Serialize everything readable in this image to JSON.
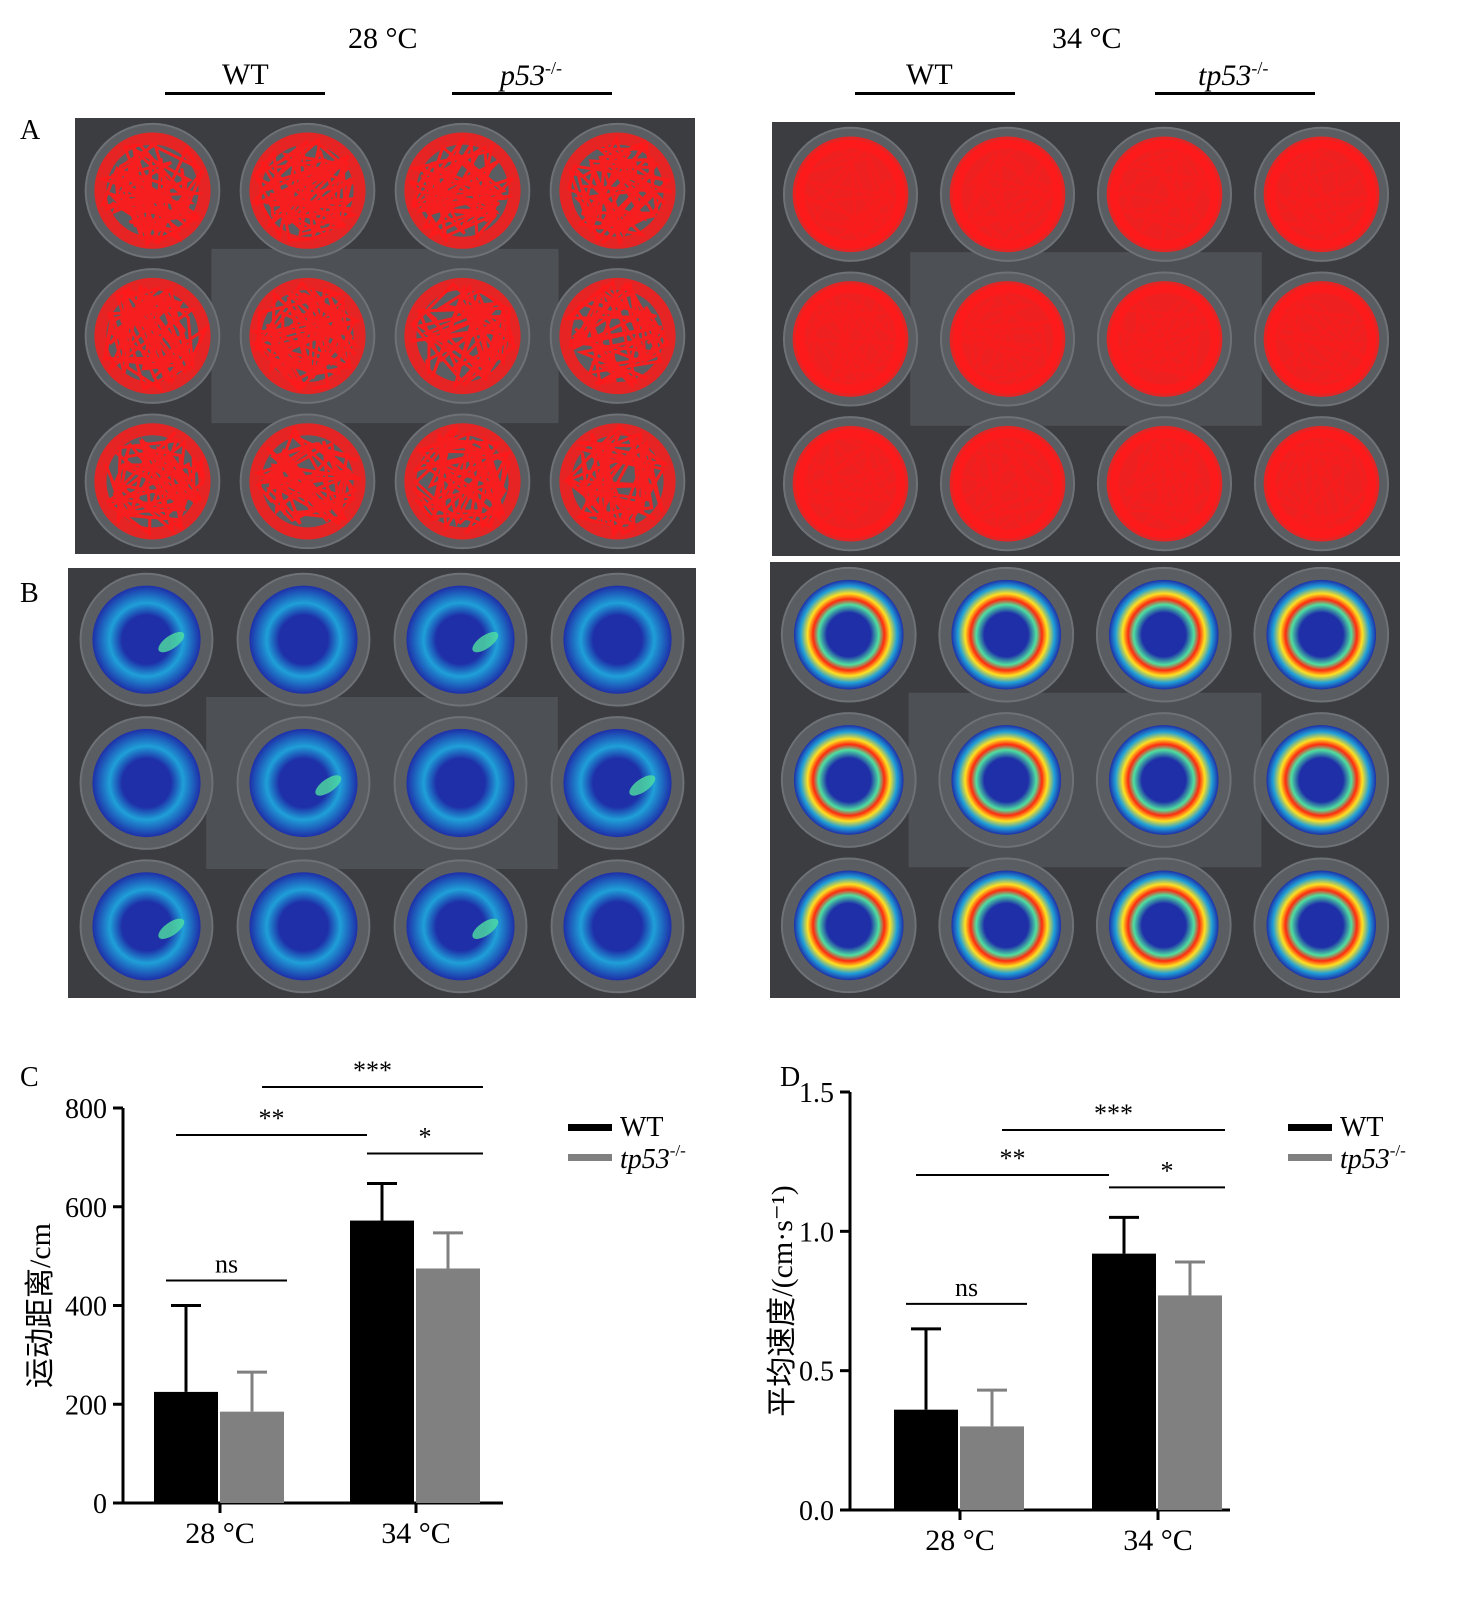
{
  "header": {
    "left_condition": "28 °C",
    "right_condition": "34 °C",
    "left_groups": [
      {
        "base": "WT",
        "sup": ""
      },
      {
        "base": "p53",
        "sup": "-/-"
      }
    ],
    "right_groups": [
      {
        "base": "WT",
        "sup": ""
      },
      {
        "base": "tp53",
        "sup": "-/-"
      }
    ]
  },
  "panels": {
    "a": "A",
    "b": "B",
    "c": "C",
    "d": "D"
  },
  "plate_colors": {
    "background": "#3b3d40",
    "well": "#5a5d61",
    "track": "#ff1a1a"
  },
  "heatmap_colors": [
    "#1e2fa8",
    "#1fa0d8",
    "#4fe0a0",
    "#ffe020",
    "#ff2a10"
  ],
  "legend": {
    "wt": "WT",
    "ko_base": "tp53",
    "ko_sup": "-/-"
  },
  "chart_data": [
    {
      "type": "bar",
      "panel": "C",
      "title": "",
      "ylabel": "运动距离/cm",
      "xlabel": "",
      "categories": [
        "28 °C",
        "34 °C"
      ],
      "ylim": [
        0,
        800
      ],
      "yticks": [
        "0",
        "200",
        "400",
        "600",
        "800"
      ],
      "series": [
        {
          "name": "WT",
          "color": "#000000",
          "values": [
            225,
            572
          ],
          "errors": [
            175,
            75
          ]
        },
        {
          "name": "tp53-/-",
          "color": "#808080",
          "values": [
            185,
            475
          ],
          "errors": [
            80,
            72
          ]
        }
      ],
      "significance": [
        {
          "label": "ns",
          "from": "28 °C WT",
          "to": "28 °C tp53-/-"
        },
        {
          "label": "*",
          "from": "34 °C WT",
          "to": "34 °C tp53-/-"
        },
        {
          "label": "**",
          "from": "28 °C WT",
          "to": "34 °C WT"
        },
        {
          "label": "***",
          "from": "28 °C tp53-/-",
          "to": "34 °C tp53-/-"
        }
      ]
    },
    {
      "type": "bar",
      "panel": "D",
      "title": "",
      "ylabel": "平均速度/(cm·s⁻¹)",
      "xlabel": "",
      "categories": [
        "28 °C",
        "34 °C"
      ],
      "ylim": [
        0,
        1.5
      ],
      "yticks": [
        "0.0",
        "0.5",
        "1.0",
        "1.5"
      ],
      "series": [
        {
          "name": "WT",
          "color": "#000000",
          "values": [
            0.36,
            0.92
          ],
          "errors": [
            0.29,
            0.13
          ]
        },
        {
          "name": "tp53-/-",
          "color": "#808080",
          "values": [
            0.3,
            0.77
          ],
          "errors": [
            0.13,
            0.12
          ]
        }
      ],
      "significance": [
        {
          "label": "ns",
          "from": "28 °C WT",
          "to": "28 °C tp53-/-"
        },
        {
          "label": "*",
          "from": "34 °C WT",
          "to": "34 °C tp53-/-"
        },
        {
          "label": "**",
          "from": "28 °C WT",
          "to": "34 °C WT"
        },
        {
          "label": "***",
          "from": "28 °C tp53-/-",
          "to": "34 °C tp53-/-"
        }
      ]
    }
  ]
}
